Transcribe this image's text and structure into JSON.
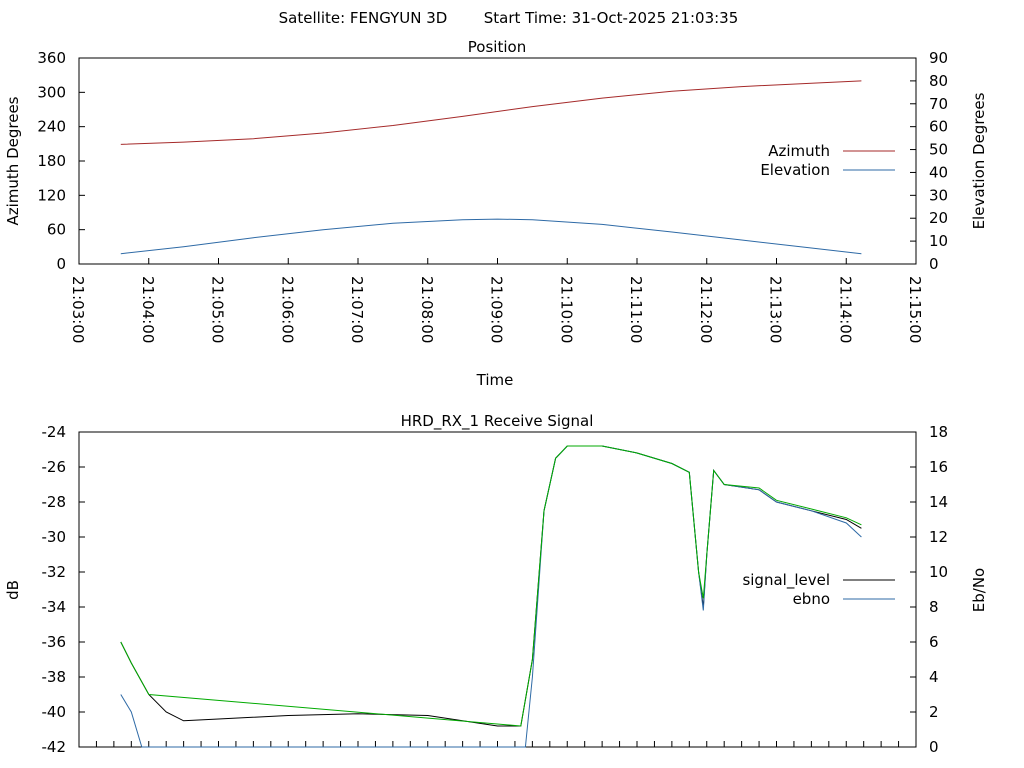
{
  "header": {
    "satellite": "Satellite: FENGYUN 3D",
    "start_time": "Start Time: 31-Oct-2025 21:03:35"
  },
  "chart_data": [
    {
      "type": "line",
      "title": "Position",
      "xlabel": "Time",
      "ylabel": "Azimuth Degrees",
      "y2label": "Elevation Degrees",
      "xlim": [
        "21:03:00",
        "21:15:00"
      ],
      "ylim": [
        0,
        360
      ],
      "y2lim": [
        0,
        90
      ],
      "x_ticks": [
        "21:03:00",
        "21:04:00",
        "21:05:00",
        "21:06:00",
        "21:07:00",
        "21:08:00",
        "21:09:00",
        "21:10:00",
        "21:11:00",
        "21:12:00",
        "21:13:00",
        "21:14:00",
        "21:15:00"
      ],
      "y_ticks": [
        0,
        60,
        120,
        180,
        240,
        300,
        360
      ],
      "y2_ticks": [
        0,
        10,
        20,
        30,
        40,
        50,
        60,
        70,
        80,
        90
      ],
      "legend_position": "right",
      "grid": false,
      "series": [
        {
          "name": "Azimuth",
          "axis": "y",
          "color": "#a52a2a",
          "points": [
            [
              "21:03:36",
              209
            ],
            [
              "21:04:30",
              213
            ],
            [
              "21:05:30",
              219
            ],
            [
              "21:06:30",
              229
            ],
            [
              "21:07:30",
              242
            ],
            [
              "21:08:30",
              258
            ],
            [
              "21:09:30",
              275
            ],
            [
              "21:10:30",
              290
            ],
            [
              "21:11:30",
              302
            ],
            [
              "21:12:30",
              310
            ],
            [
              "21:13:30",
              316
            ],
            [
              "21:14:13",
              320
            ]
          ]
        },
        {
          "name": "Elevation",
          "axis": "y2",
          "color": "#2e6aa6",
          "points": [
            [
              "21:03:36",
              4.5
            ],
            [
              "21:04:30",
              7.5
            ],
            [
              "21:05:30",
              11.5
            ],
            [
              "21:06:30",
              15
            ],
            [
              "21:07:30",
              17.8
            ],
            [
              "21:08:30",
              19.3
            ],
            [
              "21:09:00",
              19.6
            ],
            [
              "21:09:30",
              19.3
            ],
            [
              "21:10:30",
              17.3
            ],
            [
              "21:11:30",
              14
            ],
            [
              "21:12:30",
              10.5
            ],
            [
              "21:13:30",
              7
            ],
            [
              "21:14:13",
              4.5
            ]
          ]
        }
      ]
    },
    {
      "type": "line",
      "title": "HRD_RX_1 Receive Signal",
      "xlabel": "",
      "ylabel": "dB",
      "y2label": "Eb/No",
      "xlim": [
        "21:03:00",
        "21:15:00"
      ],
      "ylim": [
        -42,
        -24
      ],
      "y2lim": [
        0,
        18
      ],
      "y_ticks": [
        -42,
        -40,
        -38,
        -36,
        -34,
        -32,
        -30,
        -28,
        -26,
        -24
      ],
      "y2_ticks": [
        0,
        2,
        4,
        6,
        8,
        10,
        12,
        14,
        16,
        18
      ],
      "legend_position": "right",
      "grid": false,
      "series": [
        {
          "name": "signal_level",
          "axis": "y",
          "color": "#000000",
          "points": [
            [
              "21:03:36",
              -36
            ],
            [
              "21:03:45",
              -37.2
            ],
            [
              "21:04:00",
              -39
            ],
            [
              "21:04:15",
              -40
            ],
            [
              "21:04:30",
              -40.5
            ],
            [
              "21:05:00",
              -40.4
            ],
            [
              "21:06:00",
              -40.2
            ],
            [
              "21:07:00",
              -40.1
            ],
            [
              "21:08:00",
              -40.2
            ],
            [
              "21:08:30",
              -40.5
            ],
            [
              "21:09:00",
              -40.8
            ],
            [
              "21:09:20",
              -40.8
            ],
            [
              "21:09:30",
              -37
            ],
            [
              "21:09:40",
              -28.5
            ],
            [
              "21:09:50",
              -25.5
            ],
            [
              "21:10:00",
              -24.8
            ],
            [
              "21:10:30",
              -24.8
            ],
            [
              "21:11:00",
              -25.2
            ],
            [
              "21:11:30",
              -25.8
            ],
            [
              "21:11:45",
              -26.3
            ],
            [
              "21:11:53",
              -32
            ],
            [
              "21:11:57",
              -34
            ],
            [
              "21:12:00",
              -31
            ],
            [
              "21:12:06",
              -26.2
            ],
            [
              "21:12:15",
              -27
            ],
            [
              "21:12:45",
              -27.3
            ],
            [
              "21:13:00",
              -28
            ],
            [
              "21:13:30",
              -28.5
            ],
            [
              "21:14:00",
              -29
            ],
            [
              "21:14:13",
              -29.5
            ]
          ]
        },
        {
          "name": "ebno",
          "axis": "y2",
          "color": "#2e6aa6",
          "points": [
            [
              "21:03:36",
              3
            ],
            [
              "21:03:45",
              2
            ],
            [
              "21:03:54",
              0
            ],
            [
              "21:09:24",
              0
            ],
            [
              "21:09:30",
              4
            ],
            [
              "21:09:40",
              13.5
            ],
            [
              "21:09:50",
              16.5
            ],
            [
              "21:10:00",
              17.2
            ],
            [
              "21:10:30",
              17.2
            ],
            [
              "21:11:00",
              16.8
            ],
            [
              "21:11:30",
              16.2
            ],
            [
              "21:11:45",
              15.7
            ],
            [
              "21:11:53",
              10
            ],
            [
              "21:11:57",
              7.8
            ],
            [
              "21:12:00",
              11
            ],
            [
              "21:12:06",
              15.8
            ],
            [
              "21:12:15",
              15
            ],
            [
              "21:12:45",
              14.7
            ],
            [
              "21:13:00",
              14
            ],
            [
              "21:13:30",
              13.5
            ],
            [
              "21:14:00",
              12.8
            ],
            [
              "21:14:13",
              12
            ]
          ]
        },
        {
          "name": "",
          "axis": "y",
          "color": "#00aa00",
          "points": [
            [
              "21:03:36",
              -36
            ],
            [
              "21:03:45",
              -37.2
            ],
            [
              "21:04:00",
              -39
            ],
            [
              "21:09:20",
              -40.8
            ],
            [
              "21:09:30",
              -37
            ],
            [
              "21:09:40",
              -28.5
            ],
            [
              "21:09:50",
              -25.5
            ],
            [
              "21:10:00",
              -24.8
            ],
            [
              "21:10:30",
              -24.8
            ],
            [
              "21:11:00",
              -25.2
            ],
            [
              "21:11:30",
              -25.8
            ],
            [
              "21:11:45",
              -26.3
            ],
            [
              "21:11:53",
              -32
            ],
            [
              "21:11:57",
              -33.5
            ],
            [
              "21:12:00",
              -31
            ],
            [
              "21:12:06",
              -26.2
            ],
            [
              "21:12:15",
              -27
            ],
            [
              "21:12:45",
              -27.2
            ],
            [
              "21:13:00",
              -27.9
            ],
            [
              "21:13:30",
              -28.4
            ],
            [
              "21:14:00",
              -28.9
            ],
            [
              "21:14:13",
              -29.3
            ]
          ]
        }
      ]
    }
  ]
}
